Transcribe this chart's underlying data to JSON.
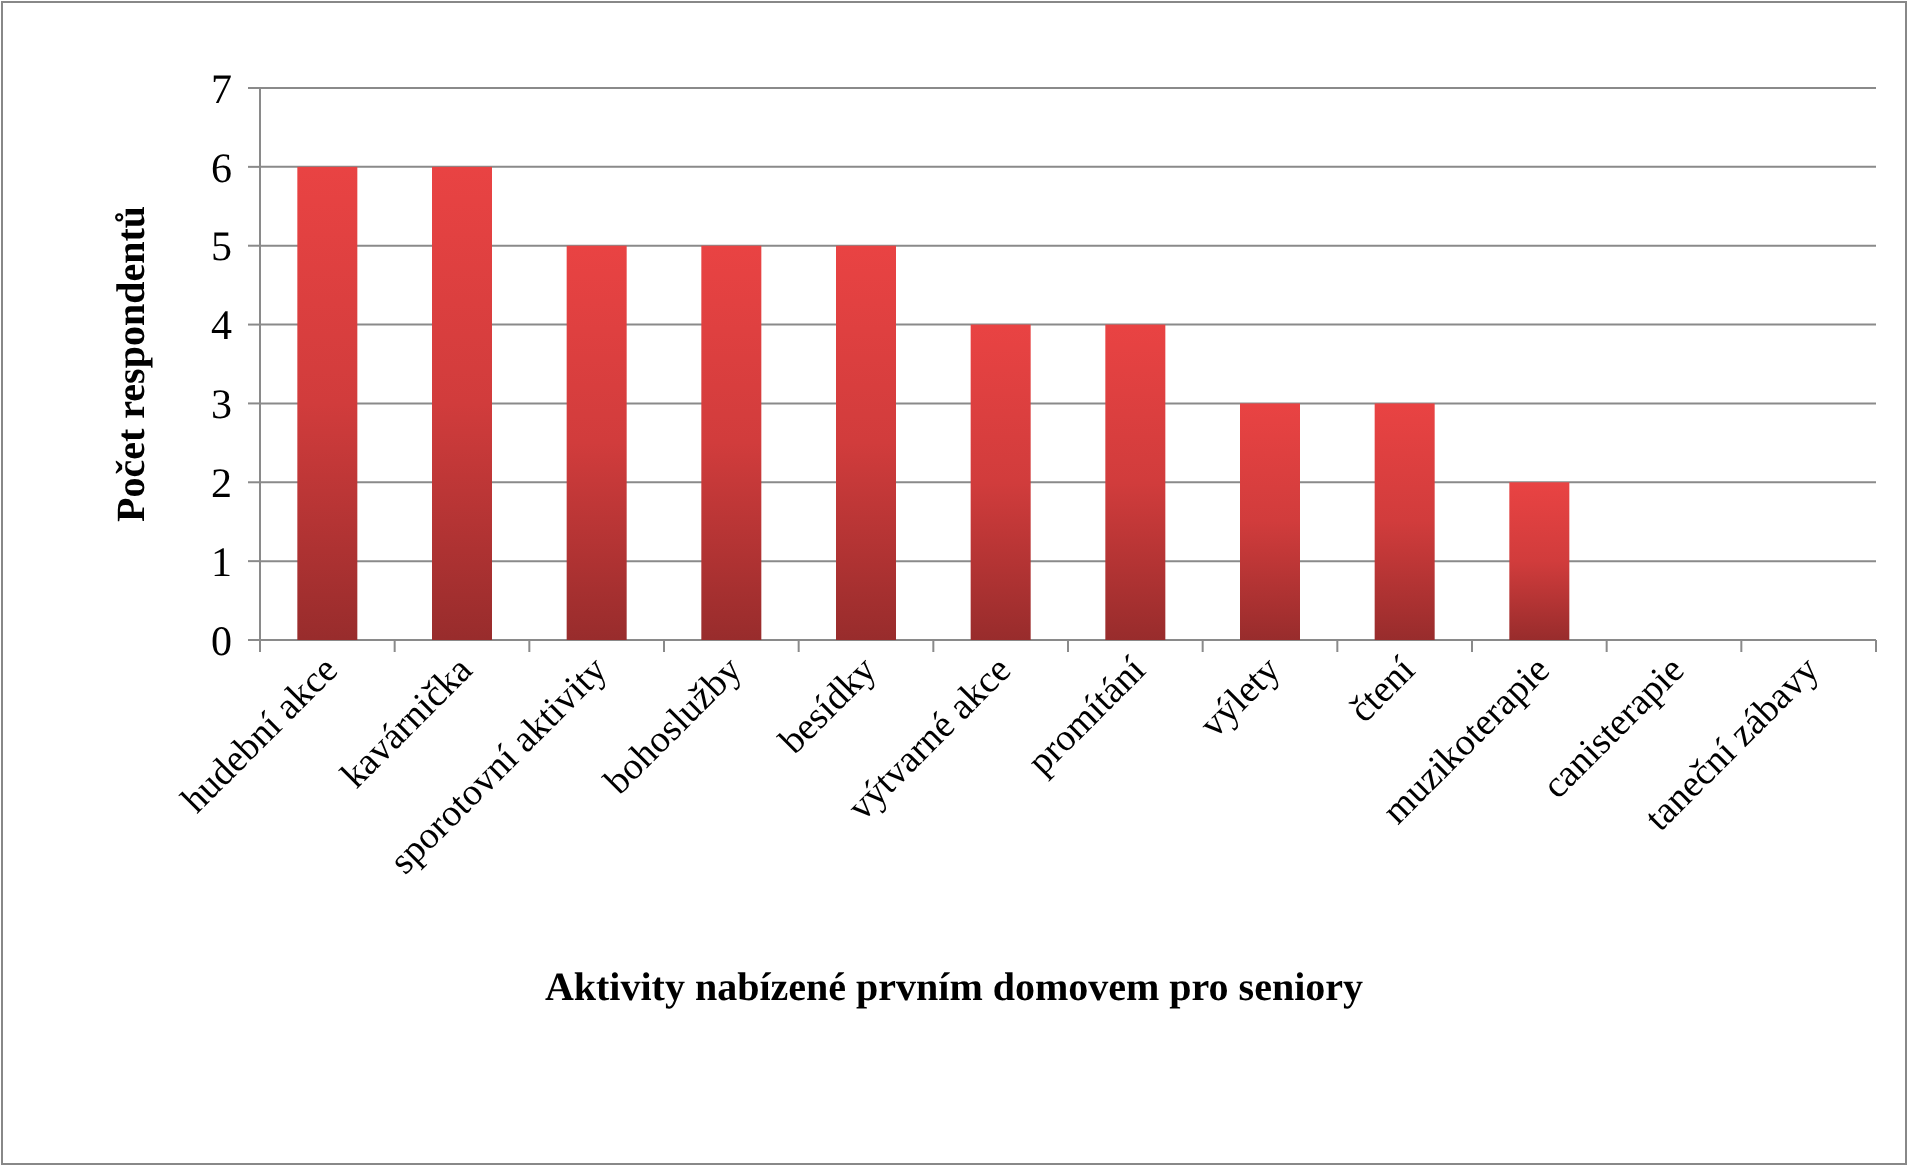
{
  "chart_data": {
    "type": "bar",
    "categories": [
      "hudební akce",
      "kavárnička",
      "sporotovní aktivity",
      "bohoslužby",
      "besídky",
      "výtvarné akce",
      "promítání",
      "výlety",
      "čtení",
      "muzikoterapie",
      "canisterapie",
      "taneční zábavy"
    ],
    "values": [
      6,
      6,
      5,
      5,
      5,
      4,
      4,
      3,
      3,
      2,
      0,
      0
    ],
    "color": "#d13c3c",
    "ylim": [
      0,
      7
    ],
    "yticks": [
      0,
      1,
      2,
      3,
      4,
      5,
      6,
      7
    ],
    "grid": "y",
    "xlabel": "Aktivity nabízené prvním domovem pro seniory",
    "ylabel": "Počet respondentů"
  }
}
